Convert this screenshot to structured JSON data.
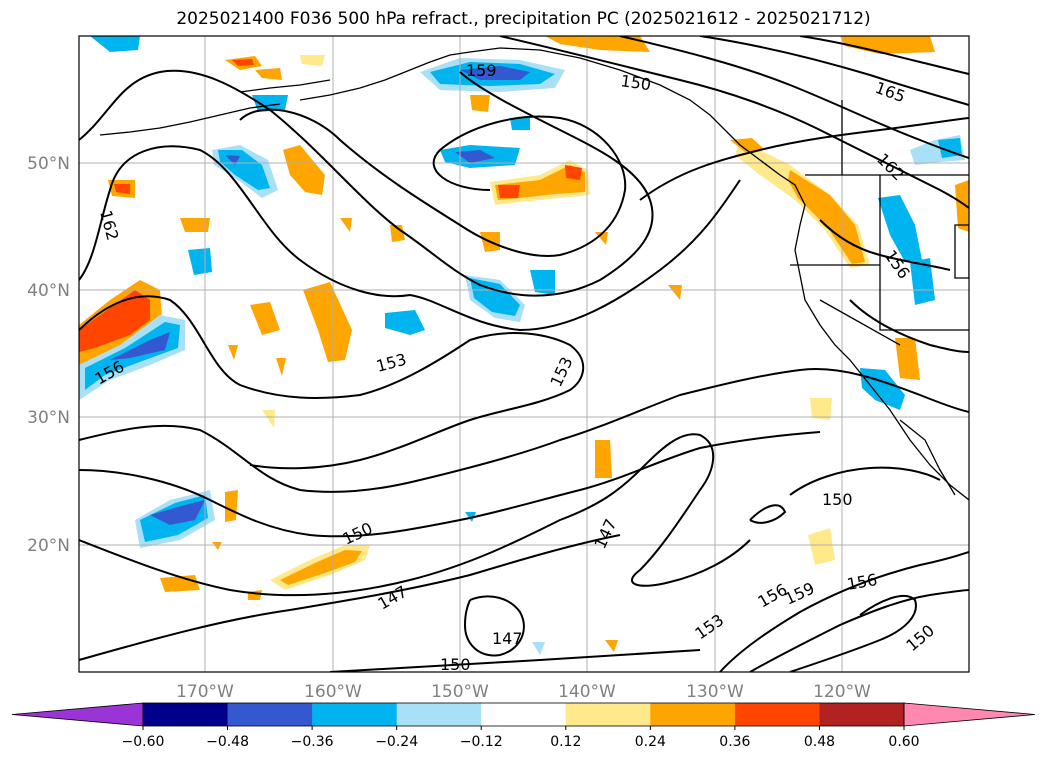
{
  "title": "2025021400 F036 500 hPa refract., precipitation PC (2025021612 - 2025021712)",
  "lat_labels": [
    "50°N",
    "40°N",
    "30°N",
    "20°N"
  ],
  "lon_labels": [
    "170°W",
    "160°W",
    "150°W",
    "140°W",
    "130°W",
    "120°W"
  ],
  "contour_labels": [
    "159",
    "150",
    "165",
    "162",
    "162",
    "156",
    "156",
    "153",
    "153",
    "150",
    "150",
    "147",
    "147",
    "147",
    "150",
    "153",
    "156",
    "159",
    "156",
    "150"
  ],
  "colorbar": {
    "ticks": [
      "−0.60",
      "−0.48",
      "−0.36",
      "−0.24",
      "−0.12",
      "0.12",
      "0.24",
      "0.36",
      "0.48",
      "0.60"
    ],
    "colors": [
      "#9a34d6",
      "#00008b",
      "#3358cf",
      "#00b4f0",
      "#a8e0f8",
      "#ffffff",
      "#ffe98a",
      "#ffa500",
      "#ff4500",
      "#b22222",
      "#ff88b0"
    ]
  }
}
